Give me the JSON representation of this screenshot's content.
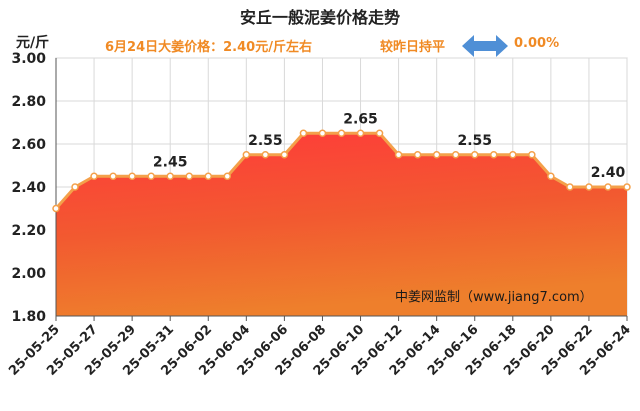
{
  "title": "安丘一般泥姜价格走势",
  "subtitle": {
    "price_text": "6月24日大姜价格：2.40元/斤左右",
    "compare_label": "较昨日持平",
    "change": "0.00%"
  },
  "colors": {
    "accent_orange": "#f08a24",
    "line": "#f4a04a",
    "fill_top": "#ff3a3a",
    "fill_bottom": "#f07a2a",
    "arrow": "#4f8fd6"
  },
  "icons": {
    "trend": "double-arrow-icon"
  },
  "chart_data": {
    "type": "area",
    "title": "安丘一般泥姜价格走势",
    "ylabel": "元/斤",
    "ylim": [
      1.8,
      3.0
    ],
    "yticks": [
      "3.00",
      "2.80",
      "2.60",
      "2.40",
      "2.20",
      "2.00",
      "1.80"
    ],
    "ytick_values": [
      3.0,
      2.8,
      2.6,
      2.4,
      2.2,
      2.0,
      1.8
    ],
    "x": [
      "25-05-25",
      "25-05-26",
      "25-05-27",
      "25-05-28",
      "25-05-29",
      "25-05-30",
      "25-05-31",
      "25-06-01",
      "25-06-02",
      "25-06-03",
      "25-06-04",
      "25-06-05",
      "25-06-06",
      "25-06-07",
      "25-06-08",
      "25-06-09",
      "25-06-10",
      "25-06-11",
      "25-06-12",
      "25-06-13",
      "25-06-14",
      "25-06-15",
      "25-06-16",
      "25-06-17",
      "25-06-18",
      "25-06-19",
      "25-06-20",
      "25-06-21",
      "25-06-22",
      "25-06-23",
      "25-06-24"
    ],
    "xtick_labels": [
      "25-05-25",
      "25-05-27",
      "25-05-29",
      "25-05-31",
      "25-06-02",
      "25-06-04",
      "25-06-06",
      "25-06-08",
      "25-06-10",
      "25-06-12",
      "25-06-14",
      "25-06-16",
      "25-06-18",
      "25-06-20",
      "25-06-22",
      "25-06-24"
    ],
    "values": [
      2.3,
      2.4,
      2.45,
      2.45,
      2.45,
      2.45,
      2.45,
      2.45,
      2.45,
      2.45,
      2.55,
      2.55,
      2.55,
      2.65,
      2.65,
      2.65,
      2.65,
      2.65,
      2.55,
      2.55,
      2.55,
      2.55,
      2.55,
      2.55,
      2.55,
      2.55,
      2.45,
      2.4,
      2.4,
      2.4,
      2.4
    ],
    "annotations": [
      {
        "index": 6,
        "text": "2.45"
      },
      {
        "index": 11,
        "text": "2.55"
      },
      {
        "index": 16,
        "text": "2.65"
      },
      {
        "index": 22,
        "text": "2.55"
      },
      {
        "index": 29,
        "text": "2.40"
      }
    ],
    "watermark": "中姜网监制（www.jiang7.com）",
    "grid": true
  }
}
